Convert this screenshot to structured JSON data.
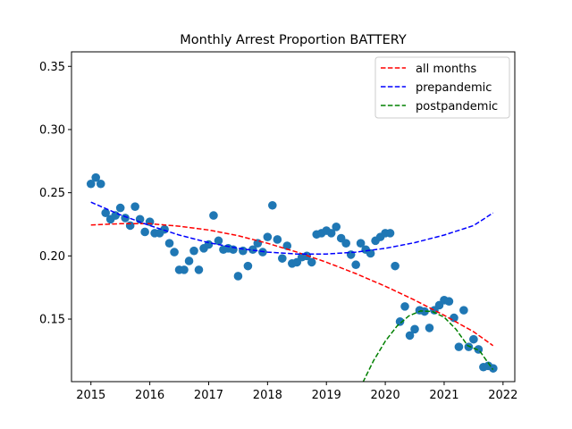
{
  "chart_data": {
    "type": "scatter",
    "title": "Monthly Arrest Proportion BATTERY",
    "xlabel": "",
    "ylabel": "",
    "xlim": [
      2014.67,
      2022.2
    ],
    "ylim": [
      0.1005,
      0.3615
    ],
    "xticks": [
      2015,
      2016,
      2017,
      2018,
      2019,
      2020,
      2021,
      2022
    ],
    "yticks": [
      0.15,
      0.2,
      0.25,
      0.3,
      0.35
    ],
    "ytick_labels": [
      "0.15",
      "0.20",
      "0.25",
      "0.30",
      "0.35"
    ],
    "grid": false,
    "legend_placement": "top-right",
    "points": {
      "color": "#1f77b4",
      "x": [
        2015.0,
        2015.083,
        2015.167,
        2015.25,
        2015.333,
        2015.417,
        2015.5,
        2015.583,
        2015.667,
        2015.75,
        2015.833,
        2015.917,
        2016.0,
        2016.083,
        2016.167,
        2016.25,
        2016.333,
        2016.417,
        2016.5,
        2016.583,
        2016.667,
        2016.75,
        2016.833,
        2016.917,
        2017.0,
        2017.083,
        2017.167,
        2017.25,
        2017.333,
        2017.417,
        2017.5,
        2017.583,
        2017.667,
        2017.75,
        2017.833,
        2017.917,
        2018.0,
        2018.083,
        2018.167,
        2018.25,
        2018.333,
        2018.417,
        2018.5,
        2018.583,
        2018.667,
        2018.75,
        2018.833,
        2018.917,
        2019.0,
        2019.083,
        2019.167,
        2019.25,
        2019.333,
        2019.417,
        2019.5,
        2019.583,
        2019.667,
        2019.75,
        2019.833,
        2019.917,
        2020.0,
        2020.083,
        2020.167,
        2020.25,
        2020.333,
        2020.417,
        2020.5,
        2020.583,
        2020.667,
        2020.75,
        2020.833,
        2020.917,
        2021.0,
        2021.083,
        2021.167,
        2021.25,
        2021.333,
        2021.417,
        2021.5,
        2021.583,
        2021.667,
        2021.75,
        2021.833
      ],
      "y": [
        0.257,
        0.262,
        0.257,
        0.234,
        0.229,
        0.232,
        0.238,
        0.23,
        0.224,
        0.239,
        0.229,
        0.219,
        0.227,
        0.218,
        0.218,
        0.221,
        0.21,
        0.203,
        0.189,
        0.189,
        0.196,
        0.204,
        0.189,
        0.206,
        0.209,
        0.232,
        0.212,
        0.205,
        0.206,
        0.205,
        0.184,
        0.204,
        0.192,
        0.205,
        0.21,
        0.203,
        0.215,
        0.24,
        0.213,
        0.198,
        0.208,
        0.194,
        0.195,
        0.199,
        0.2,
        0.195,
        0.217,
        0.218,
        0.22,
        0.218,
        0.223,
        0.214,
        0.21,
        0.201,
        0.193,
        0.21,
        0.205,
        0.202,
        0.212,
        0.215,
        0.218,
        0.218,
        0.192,
        0.148,
        0.16,
        0.137,
        0.142,
        0.157,
        0.156,
        0.143,
        0.157,
        0.161,
        0.165,
        0.164,
        0.151,
        0.128,
        0.157,
        0.128,
        0.134,
        0.126,
        0.112,
        0.113,
        0.111
      ]
    },
    "series": [
      {
        "name": "all months",
        "color": "#ff0000",
        "x": [
          2015.0,
          2015.5,
          2016.0,
          2016.5,
          2017.0,
          2017.5,
          2018.0,
          2018.5,
          2019.0,
          2019.5,
          2020.0,
          2020.5,
          2021.0,
          2021.5,
          2021.83
        ],
        "y": [
          0.2245,
          0.2255,
          0.2255,
          0.2235,
          0.2205,
          0.216,
          0.21,
          0.203,
          0.195,
          0.186,
          0.176,
          0.165,
          0.153,
          0.14,
          0.129
        ]
      },
      {
        "name": "prepandemic",
        "color": "#0000ff",
        "x": [
          2015.0,
          2015.5,
          2016.0,
          2016.5,
          2017.0,
          2017.5,
          2018.0,
          2018.5,
          2019.0,
          2019.5,
          2020.0,
          2020.5,
          2021.0,
          2021.5,
          2021.83
        ],
        "y": [
          0.2425,
          0.2325,
          0.224,
          0.2165,
          0.2105,
          0.206,
          0.203,
          0.2015,
          0.2015,
          0.203,
          0.206,
          0.2105,
          0.2165,
          0.224,
          0.234
        ]
      },
      {
        "name": "postpandemic",
        "color": "#008000",
        "x": [
          2019.62,
          2019.8,
          2020.0,
          2020.2,
          2020.4,
          2020.6,
          2020.8,
          2021.0,
          2021.2,
          2021.4,
          2021.6,
          2021.83
        ],
        "y": [
          0.1,
          0.117,
          0.1325,
          0.1445,
          0.1525,
          0.1565,
          0.156,
          0.1515,
          0.142,
          0.129,
          0.125,
          0.11
        ]
      }
    ]
  }
}
